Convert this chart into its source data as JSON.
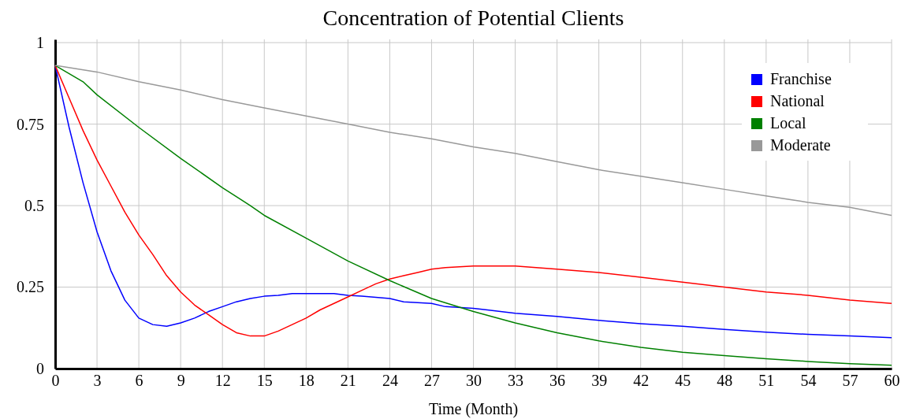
{
  "chart_data": {
    "type": "line",
    "title": "Concentration of Potential Clients",
    "xlabel": "Time (Month)",
    "xlim": [
      0,
      60
    ],
    "xticks": [
      0,
      3,
      6,
      9,
      12,
      15,
      18,
      21,
      24,
      27,
      30,
      33,
      36,
      39,
      42,
      45,
      48,
      51,
      54,
      57,
      60
    ],
    "ylim": [
      0,
      1.01
    ],
    "yticks": [
      0,
      0.25,
      0.5,
      0.75,
      1
    ],
    "grid": true,
    "legend": "top right",
    "marker": "none",
    "line_style": "solid",
    "series": [
      {
        "name": "Franchise",
        "color": "#0000ff",
        "x": [
          0,
          1,
          2,
          3,
          4,
          5,
          6,
          7,
          8,
          9,
          10,
          11,
          12,
          13,
          14,
          15,
          16,
          17,
          18,
          19,
          20,
          21,
          22,
          24,
          25,
          27,
          28,
          30,
          31,
          33,
          36,
          39,
          42,
          45,
          48,
          51,
          54,
          57,
          60
        ],
        "values": [
          0.93,
          0.74,
          0.57,
          0.42,
          0.3,
          0.21,
          0.155,
          0.135,
          0.13,
          0.14,
          0.155,
          0.175,
          0.19,
          0.205,
          0.215,
          0.222,
          0.225,
          0.23,
          0.23,
          0.23,
          0.23,
          0.225,
          0.222,
          0.215,
          0.205,
          0.2,
          0.19,
          0.185,
          0.18,
          0.17,
          0.16,
          0.148,
          0.138,
          0.13,
          0.12,
          0.112,
          0.105,
          0.1,
          0.095
        ]
      },
      {
        "name": "National",
        "color": "#ff0000",
        "x": [
          0,
          1,
          2,
          3,
          4,
          5,
          6,
          7,
          8,
          9,
          10,
          11,
          12,
          13,
          14,
          15,
          16,
          17,
          18,
          19,
          20,
          21,
          22,
          23,
          24,
          25,
          26,
          27,
          28,
          30,
          33,
          36,
          39,
          42,
          45,
          48,
          51,
          54,
          57,
          60
        ],
        "values": [
          0.93,
          0.83,
          0.73,
          0.64,
          0.56,
          0.48,
          0.41,
          0.35,
          0.285,
          0.235,
          0.195,
          0.165,
          0.135,
          0.11,
          0.1,
          0.1,
          0.115,
          0.135,
          0.155,
          0.18,
          0.2,
          0.22,
          0.24,
          0.26,
          0.275,
          0.285,
          0.295,
          0.305,
          0.31,
          0.315,
          0.315,
          0.305,
          0.295,
          0.28,
          0.265,
          0.25,
          0.235,
          0.225,
          0.21,
          0.2
        ]
      },
      {
        "name": "Local",
        "color": "#008000",
        "x": [
          0,
          2,
          3,
          6,
          9,
          12,
          14,
          15,
          18,
          21,
          24,
          27,
          30,
          33,
          36,
          39,
          42,
          45,
          48,
          51,
          54,
          57,
          60
        ],
        "values": [
          0.93,
          0.88,
          0.84,
          0.74,
          0.645,
          0.555,
          0.5,
          0.47,
          0.4,
          0.33,
          0.27,
          0.215,
          0.175,
          0.14,
          0.11,
          0.085,
          0.065,
          0.05,
          0.04,
          0.03,
          0.022,
          0.015,
          0.01
        ]
      },
      {
        "name": "Moderate",
        "color": "#999999",
        "x": [
          0,
          3,
          6,
          9,
          12,
          15,
          18,
          21,
          24,
          27,
          30,
          33,
          36,
          39,
          42,
          45,
          48,
          51,
          54,
          57,
          60
        ],
        "values": [
          0.93,
          0.91,
          0.88,
          0.855,
          0.825,
          0.8,
          0.775,
          0.75,
          0.725,
          0.705,
          0.68,
          0.66,
          0.635,
          0.61,
          0.59,
          0.57,
          0.55,
          0.53,
          0.51,
          0.495,
          0.47
        ]
      }
    ]
  }
}
